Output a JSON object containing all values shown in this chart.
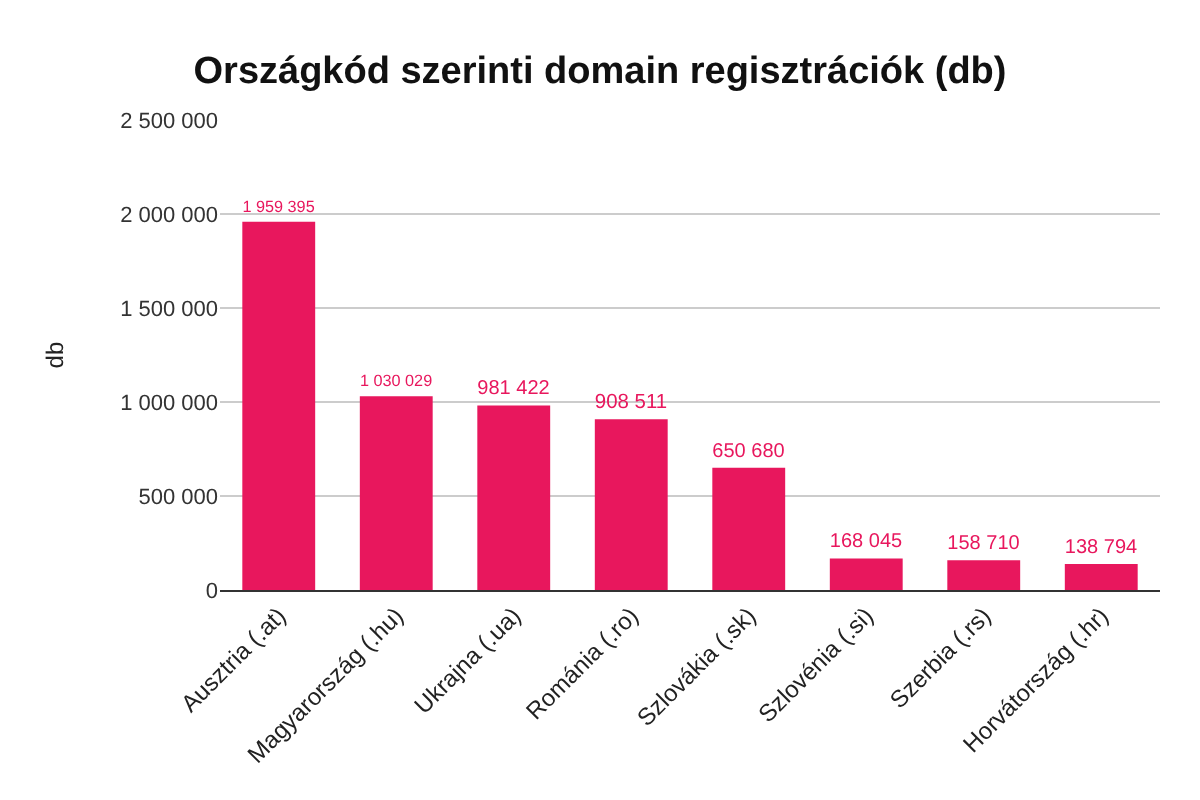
{
  "chart_data": {
    "type": "bar",
    "title": "Országkód szerinti domain regisztrációk (db)",
    "ylabel": "db",
    "categories": [
      "Ausztria (.at)",
      "Magyarország (.hu)",
      "Ukrajna (.ua)",
      "Románia (.ro)",
      "Szlovákia (.sk)",
      "Szlovénia (.si)",
      "Szerbia (.rs)",
      "Horvátország (.hr)"
    ],
    "values": [
      1959395,
      1030029,
      981422,
      908511,
      650680,
      168045,
      158710,
      138794
    ],
    "value_labels": [
      "1 959 395",
      "1 030 029",
      "981 422",
      "908 511",
      "650 680",
      "168 045",
      "158 710",
      "138 794"
    ],
    "color": "#e8175d",
    "ylim": [
      0,
      2500000
    ],
    "yticks": [
      {
        "value": 0,
        "label": "0"
      },
      {
        "value": 500000,
        "label": "500 000"
      },
      {
        "value": 1000000,
        "label": "1 000 000"
      },
      {
        "value": 1500000,
        "label": "1 500 000"
      },
      {
        "value": 2000000,
        "label": "2 000 000"
      },
      {
        "value": 2500000,
        "label": "2 500 000"
      }
    ],
    "grid": true
  }
}
